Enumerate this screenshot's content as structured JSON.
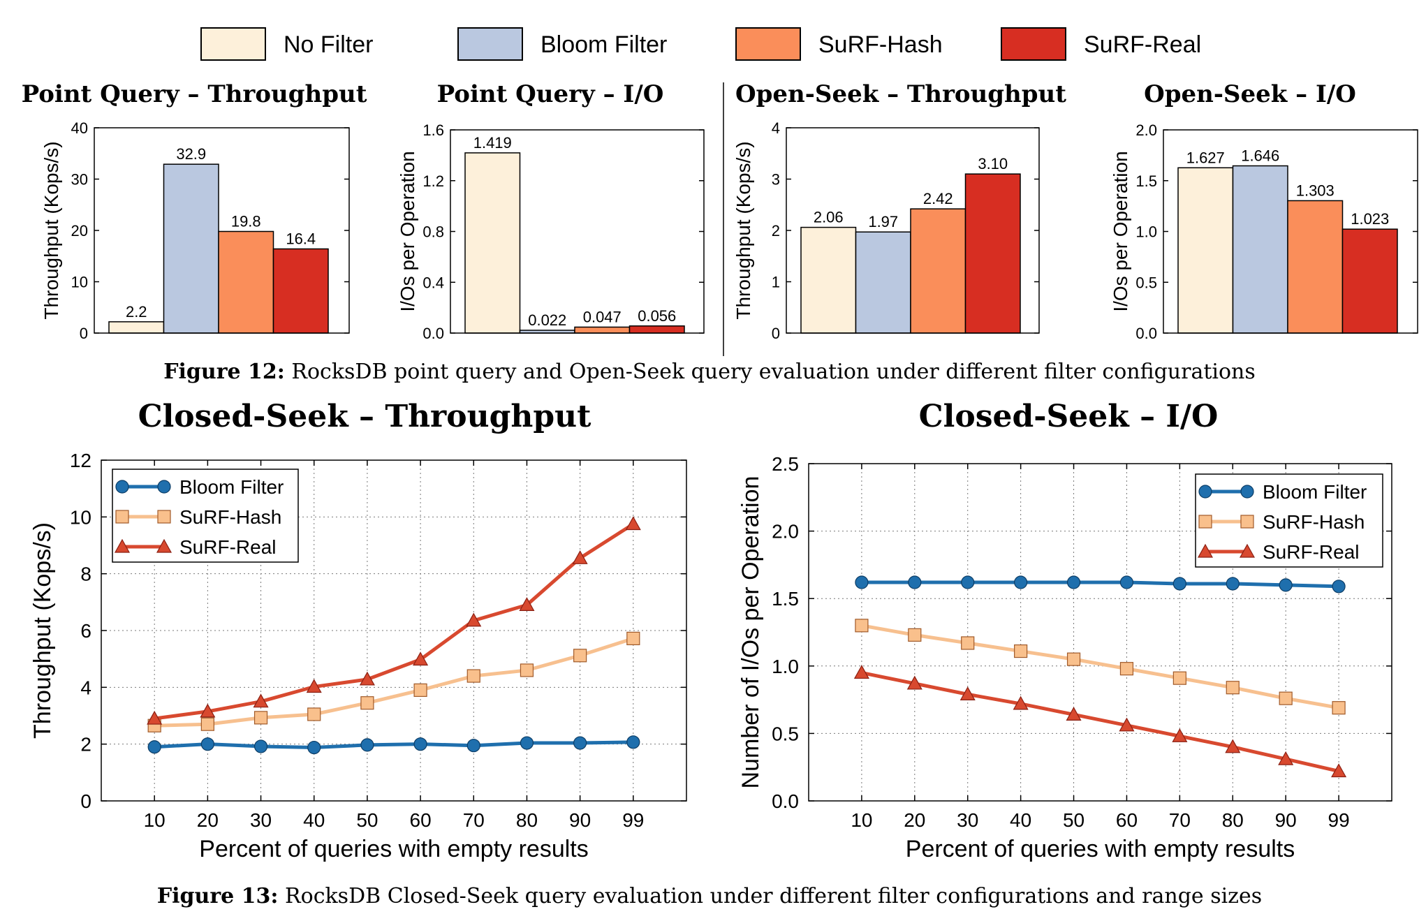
{
  "figure12": {
    "caption_label": "Figure 12:",
    "caption_text": " RocksDB point query and Open-Seek query evaluation under different filter configurations"
  },
  "figure13": {
    "caption_label": "Figure 13:",
    "caption_text": " RocksDB Closed-Seek query evaluation under different filter configurations and range sizes"
  },
  "legend_top": [
    {
      "label": "No Filter",
      "color": "#fdf0da"
    },
    {
      "label": "Bloom Filter",
      "color": "#bac8e0"
    },
    {
      "label": "SuRF-Hash",
      "color": "#fa8e5a"
    },
    {
      "label": "SuRF-Real",
      "color": "#d72e22"
    }
  ],
  "chart_data": [
    {
      "type": "bar",
      "title": "Point Query – Throughput",
      "ylabel": "Throughput (Kops/s)",
      "ylim": [
        0,
        40
      ],
      "yticks": [
        "0",
        "10",
        "20",
        "30",
        "40"
      ],
      "categories": [
        "No Filter",
        "Bloom Filter",
        "SuRF-Hash",
        "SuRF-Real"
      ],
      "values": [
        2.2,
        32.9,
        19.8,
        16.4
      ],
      "labels": [
        "2.2",
        "32.9",
        "19.8",
        "16.4"
      ]
    },
    {
      "type": "bar",
      "title": "Point Query – I/O",
      "ylabel": "I/Os per Operation",
      "ylim": [
        0,
        1.6
      ],
      "yticks": [
        "0.0",
        "0.4",
        "0.8",
        "1.2",
        "1.6"
      ],
      "categories": [
        "No Filter",
        "Bloom Filter",
        "SuRF-Hash",
        "SuRF-Real"
      ],
      "values": [
        1.419,
        0.022,
        0.047,
        0.056
      ],
      "labels": [
        "1.419",
        "0.022",
        "0.047",
        "0.056"
      ]
    },
    {
      "type": "bar",
      "title": "Open-Seek – Throughput",
      "ylabel": "Throughput (Kops/s)",
      "ylim": [
        0,
        4
      ],
      "yticks": [
        "0",
        "1",
        "2",
        "3",
        "4"
      ],
      "categories": [
        "No Filter",
        "Bloom Filter",
        "SuRF-Hash",
        "SuRF-Real"
      ],
      "values": [
        2.06,
        1.97,
        2.42,
        3.1
      ],
      "labels": [
        "2.06",
        "1.97",
        "2.42",
        "3.10"
      ]
    },
    {
      "type": "bar",
      "title": "Open-Seek – I/O",
      "ylabel": "I/Os per Operation",
      "ylim": [
        0,
        2.0
      ],
      "yticks": [
        "0.0",
        "0.5",
        "1.0",
        "1.5",
        "2.0"
      ],
      "categories": [
        "No Filter",
        "Bloom Filter",
        "SuRF-Hash",
        "SuRF-Real"
      ],
      "values": [
        1.627,
        1.646,
        1.303,
        1.023
      ],
      "labels": [
        "1.627",
        "1.646",
        "1.303",
        "1.023"
      ]
    },
    {
      "type": "line",
      "title": "Closed-Seek – Throughput",
      "xlabel": "Percent of queries with empty results",
      "ylabel": "Throughput (Kops/s)",
      "x": [
        "10",
        "20",
        "30",
        "40",
        "50",
        "60",
        "70",
        "80",
        "90",
        "99"
      ],
      "ylim": [
        0,
        12
      ],
      "yticks": [
        "0",
        "2",
        "4",
        "6",
        "8",
        "10",
        "12"
      ],
      "grid": true,
      "legend_position": "top-left",
      "series": [
        {
          "name": "Bloom Filter",
          "marker": "circle",
          "color": "#1f6fad",
          "fill": "#1f6fad",
          "values": [
            1.9,
            2.0,
            1.92,
            1.88,
            1.97,
            2.0,
            1.95,
            2.04,
            2.04,
            2.07
          ]
        },
        {
          "name": "SuRF-Hash",
          "marker": "square",
          "color": "#f7c08f",
          "fill": "#f9c08c",
          "values": [
            2.65,
            2.7,
            2.93,
            3.05,
            3.45,
            3.9,
            4.4,
            4.6,
            5.12,
            5.72
          ]
        },
        {
          "name": "SuRF-Real",
          "marker": "triangle",
          "color": "#d8492f",
          "fill": "#d8492f",
          "values": [
            2.9,
            3.15,
            3.5,
            4.02,
            4.28,
            4.98,
            6.35,
            6.9,
            8.55,
            9.75
          ]
        }
      ]
    },
    {
      "type": "line",
      "title": "Closed-Seek – I/O",
      "xlabel": "Percent of queries with empty results",
      "ylabel": "Number of I/Os per Operation",
      "x": [
        "10",
        "20",
        "30",
        "40",
        "50",
        "60",
        "70",
        "80",
        "90",
        "99"
      ],
      "ylim": [
        0,
        2.5
      ],
      "yticks": [
        "0.0",
        "0.5",
        "1.0",
        "1.5",
        "2.0",
        "2.5"
      ],
      "grid": true,
      "legend_position": "top-right",
      "series": [
        {
          "name": "Bloom Filter",
          "marker": "circle",
          "color": "#1f6fad",
          "fill": "#1f6fad",
          "values": [
            1.62,
            1.62,
            1.62,
            1.62,
            1.62,
            1.62,
            1.61,
            1.61,
            1.6,
            1.59
          ]
        },
        {
          "name": "SuRF-Hash",
          "marker": "square",
          "color": "#f7c08f",
          "fill": "#f9c08c",
          "values": [
            1.3,
            1.23,
            1.17,
            1.11,
            1.05,
            0.98,
            0.91,
            0.84,
            0.76,
            0.69
          ]
        },
        {
          "name": "SuRF-Real",
          "marker": "triangle",
          "color": "#d8492f",
          "fill": "#d8492f",
          "values": [
            0.95,
            0.87,
            0.79,
            0.72,
            0.64,
            0.56,
            0.48,
            0.4,
            0.31,
            0.22
          ]
        }
      ]
    }
  ]
}
